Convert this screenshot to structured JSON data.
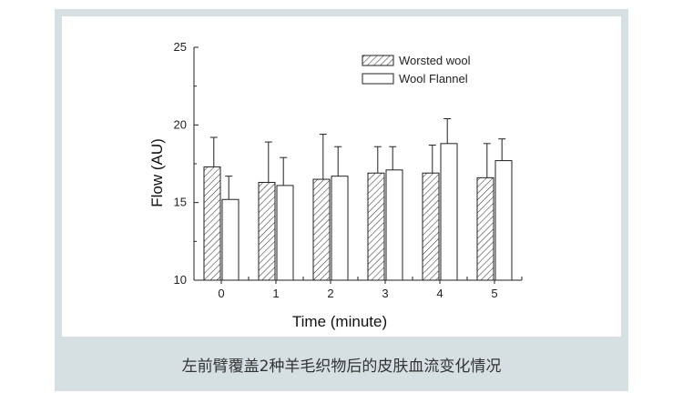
{
  "caption": "左前臂覆盖2种羊毛织物后的皮肤血流变化情况",
  "chart_data": {
    "type": "bar",
    "categories": [
      "0",
      "1",
      "2",
      "3",
      "4",
      "5"
    ],
    "series": [
      {
        "name": "Worsted wool",
        "values": [
          17.3,
          16.3,
          16.5,
          16.9,
          16.9,
          16.6
        ],
        "errors": [
          1.9,
          2.6,
          2.9,
          1.7,
          1.8,
          2.2
        ],
        "fill": "hatched"
      },
      {
        "name": "Wool Flannel",
        "values": [
          15.2,
          16.1,
          16.7,
          17.1,
          18.8,
          17.7
        ],
        "errors": [
          1.5,
          1.8,
          1.9,
          1.5,
          1.6,
          1.4
        ],
        "fill": "open"
      }
    ],
    "xlabel": "Time (minute)",
    "ylabel": "Flow (AU)",
    "ylim": [
      10,
      25
    ],
    "yticks": [
      10,
      15,
      20,
      25
    ],
    "legend_position": "top-right",
    "grid": false
  }
}
